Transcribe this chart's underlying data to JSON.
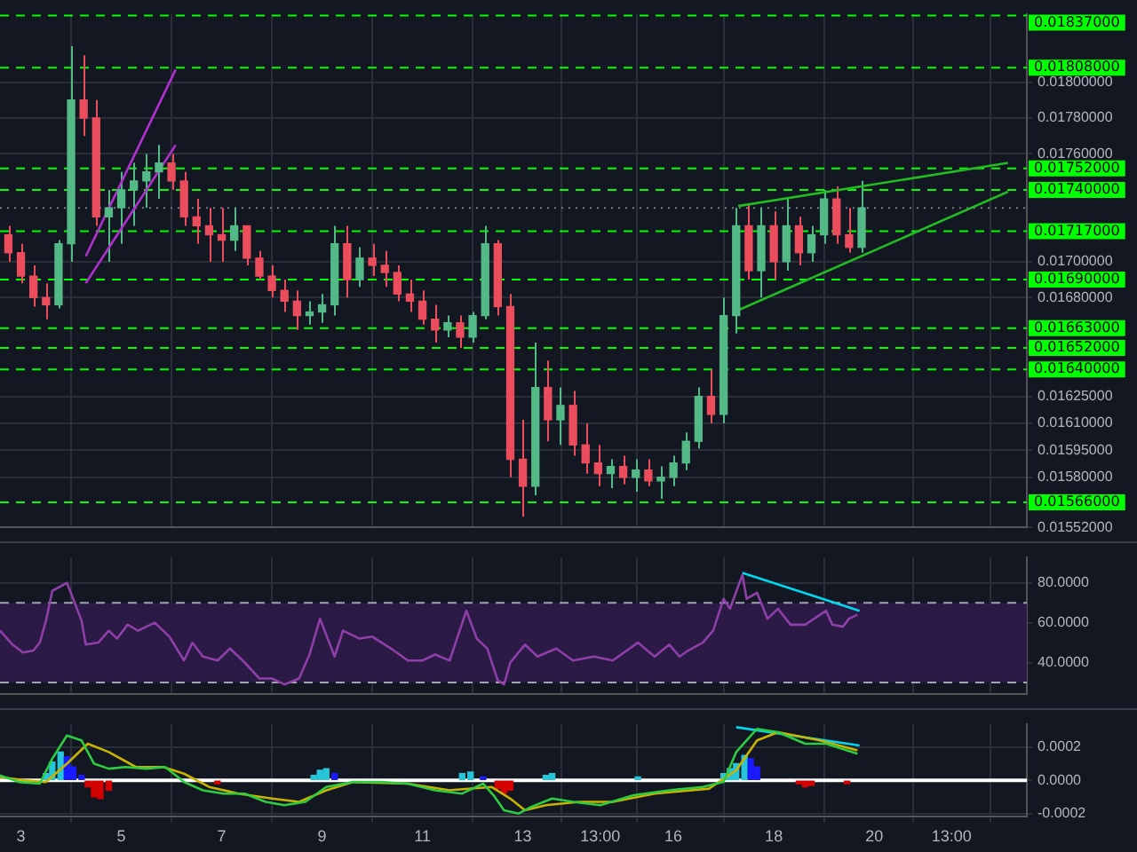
{
  "chart_data": [
    {
      "type": "candlestick",
      "xlim": [
        "--01-02T14:00",
        "--01-23T01:00"
      ],
      "ylim": [
        0.01552,
        0.01838
      ],
      "grid": true,
      "tick_labels": "y",
      "legend": false,
      "xticks": [
        {
          "value": "--01-03",
          "label": null
        },
        {
          "value": "--01-05",
          "label": null
        },
        {
          "value": "--01-07",
          "label": null
        },
        {
          "value": "--01-09",
          "label": null
        },
        {
          "value": "--01-11",
          "label": null
        },
        {
          "value": "--01-13",
          "label": null
        },
        {
          "value": "--01-14T13:00",
          "label": null
        },
        {
          "value": "--01-16",
          "label": null
        },
        {
          "value": "--01-18",
          "label": null
        },
        {
          "value": "--01-20",
          "label": null
        },
        {
          "value": "--01-21T13:00",
          "label": null
        }
      ],
      "yticks": [
        {
          "value": 0.01552,
          "label": "0.01552000"
        },
        {
          "value": 0.0158,
          "label": "0.01580000"
        },
        {
          "value": 0.01595,
          "label": "0.01595000"
        },
        {
          "value": 0.0161,
          "label": "0.01610000"
        },
        {
          "value": 0.01625,
          "label": "0.01625000"
        },
        {
          "value": 0.0168,
          "label": "0.01680000"
        },
        {
          "value": 0.017,
          "label": "0.01700000"
        },
        {
          "value": 0.0176,
          "label": "0.01760000"
        },
        {
          "value": 0.0178,
          "label": "0.01780000"
        },
        {
          "value": 0.018,
          "label": "0.01800000"
        }
      ],
      "ref_lines": [
        {
          "axis": "y",
          "value": 0.01837,
          "label": "0.01837000",
          "color": "#00ff00",
          "line_style": "dashed"
        },
        {
          "axis": "y",
          "value": 0.01808,
          "label": "0.01808000",
          "color": "#00ff00",
          "line_style": "dashed"
        },
        {
          "axis": "y",
          "value": 0.01752,
          "label": "0.01752000",
          "color": "#00ff00",
          "line_style": "dashed"
        },
        {
          "axis": "y",
          "value": 0.0174,
          "label": "0.01740000",
          "color": "#00ff00",
          "line_style": "dashed"
        },
        {
          "axis": "y",
          "value": 0.01717,
          "label": "0.01717000",
          "color": "#00ff00",
          "line_style": "dashed"
        },
        {
          "axis": "y",
          "value": 0.0169,
          "label": "0.01690000",
          "color": "#00ff00",
          "line_style": "dashed"
        },
        {
          "axis": "y",
          "value": 0.01663,
          "label": "0.01663000",
          "color": "#00ff00",
          "line_style": "dashed"
        },
        {
          "axis": "y",
          "value": 0.01652,
          "label": "0.01652000",
          "color": "#00ff00",
          "line_style": "dashed"
        },
        {
          "axis": "y",
          "value": 0.0164,
          "label": "0.01640000",
          "color": "#00ff00",
          "line_style": "dashed"
        },
        {
          "axis": "y",
          "value": 0.01566,
          "label": "0.01566000",
          "color": "#00ff00",
          "line_style": "dashed"
        },
        {
          "axis": "y",
          "value": 0.0173,
          "color": "#6f7a80",
          "line_style": "dotted"
        }
      ],
      "series": [
        {
          "x": [
            "--01-02T18:00",
            "--01-03T00:00",
            "--01-03T06:00",
            "--01-03T12:00",
            "--01-03T18:00",
            "--01-04T00:00",
            "--01-04T06:00",
            "--01-04T12:00",
            "--01-04T18:00",
            "--01-05T00:00",
            "--01-05T06:00",
            "--01-05T12:00",
            "--01-05T18:00",
            "--01-06T00:00",
            "--01-06T06:00",
            "--01-06T12:00",
            "--01-06T18:00",
            "--01-07T00:00",
            "--01-07T06:00",
            "--01-07T12:00",
            "--01-07T18:00",
            "--01-08T00:00",
            "--01-08T06:00",
            "--01-08T12:00",
            "--01-08T18:00",
            "--01-09T00:00",
            "--01-09T06:00",
            "--01-09T12:00",
            "--01-09T18:00",
            "--01-10T00:00",
            "--01-10T06:00",
            "--01-10T12:00",
            "--01-10T18:00",
            "--01-11T00:00",
            "--01-11T06:00",
            "--01-11T12:00",
            "--01-11T18:00",
            "--01-12T00:00",
            "--01-12T06:00",
            "--01-12T12:00",
            "--01-12T18:00",
            "--01-13T00:00",
            "--01-13T06:00",
            "--01-13T12:00",
            "--01-13T18:00",
            "--01-14T00:00",
            "--01-14T06:00",
            "--01-14T12:00",
            "--01-14T18:00",
            "--01-15T00:00",
            "--01-15T06:00",
            "--01-15T12:00",
            "--01-15T18:00",
            "--01-16T00:00",
            "--01-16T06:00",
            "--01-16T12:00",
            "--01-16T18:00",
            "--01-17T00:00",
            "--01-17T06:00",
            "--01-17T12:00",
            "--01-17T18:00",
            "--01-18T00:00",
            "--01-18T06:00",
            "--01-18T12:00",
            "--01-18T18:00",
            "--01-19T00:00",
            "--01-19T06:00",
            "--01-19T12:00",
            "--01-19T18:00"
          ],
          "ohlc": [
            [
              0.01715,
              0.0172,
              0.017,
              0.01705
            ],
            [
              0.01705,
              0.0171,
              0.01688,
              0.01692
            ],
            [
              0.01692,
              0.01698,
              0.01675,
              0.0168
            ],
            [
              0.0168,
              0.01688,
              0.01668,
              0.01676
            ],
            [
              0.01676,
              0.01712,
              0.01674,
              0.0171
            ],
            [
              0.0171,
              0.0182,
              0.017,
              0.0179
            ],
            [
              0.0179,
              0.01815,
              0.0177,
              0.0178
            ],
            [
              0.0178,
              0.0179,
              0.0172,
              0.01725
            ],
            [
              0.01725,
              0.0174,
              0.017,
              0.0173
            ],
            [
              0.0173,
              0.0175,
              0.0171,
              0.0174
            ],
            [
              0.0174,
              0.01755,
              0.0172,
              0.01745
            ],
            [
              0.01745,
              0.0176,
              0.0173,
              0.0175
            ],
            [
              0.0175,
              0.01765,
              0.01735,
              0.01755
            ],
            [
              0.01755,
              0.0176,
              0.0174,
              0.01745
            ],
            [
              0.01745,
              0.0175,
              0.0172,
              0.01725
            ],
            [
              0.01725,
              0.01735,
              0.0171,
              0.0172
            ],
            [
              0.0172,
              0.0173,
              0.017,
              0.01715
            ],
            [
              0.01715,
              0.0173,
              0.017,
              0.01712
            ],
            [
              0.01712,
              0.0173,
              0.01706,
              0.0172
            ],
            [
              0.0172,
              0.0172,
              0.01698,
              0.01702
            ],
            [
              0.01702,
              0.01706,
              0.0169,
              0.01692
            ],
            [
              0.01692,
              0.01698,
              0.0168,
              0.01684
            ],
            [
              0.01684,
              0.0169,
              0.01672,
              0.01678
            ],
            [
              0.01678,
              0.01684,
              0.01662,
              0.0167
            ],
            [
              0.0167,
              0.01678,
              0.01665,
              0.01672
            ],
            [
              0.01672,
              0.01682,
              0.01666,
              0.01676
            ],
            [
              0.01676,
              0.0172,
              0.0167,
              0.0171
            ],
            [
              0.0171,
              0.0172,
              0.0168,
              0.0169
            ],
            [
              0.0169,
              0.01708,
              0.01686,
              0.01702
            ],
            [
              0.01702,
              0.0171,
              0.01692,
              0.01698
            ],
            [
              0.01698,
              0.01706,
              0.01686,
              0.01694
            ],
            [
              0.01694,
              0.01698,
              0.01678,
              0.01682
            ],
            [
              0.01682,
              0.0169,
              0.01672,
              0.01678
            ],
            [
              0.01678,
              0.01684,
              0.01665,
              0.01668
            ],
            [
              0.01668,
              0.01676,
              0.01655,
              0.01662
            ],
            [
              0.01662,
              0.0167,
              0.01658,
              0.01666
            ],
            [
              0.01666,
              0.0167,
              0.01652,
              0.01658
            ],
            [
              0.01658,
              0.01672,
              0.01655,
              0.0167
            ],
            [
              0.0167,
              0.0172,
              0.01668,
              0.0171
            ],
            [
              0.0171,
              0.01712,
              0.0167,
              0.01675
            ],
            [
              0.01675,
              0.01682,
              0.0158,
              0.0159
            ],
            [
              0.0159,
              0.01612,
              0.01558,
              0.01575
            ],
            [
              0.01575,
              0.01655,
              0.0157,
              0.0163
            ],
            [
              0.0163,
              0.01645,
              0.016,
              0.01612
            ],
            [
              0.01612,
              0.0163,
              0.01598,
              0.0162
            ],
            [
              0.0162,
              0.01628,
              0.01592,
              0.01598
            ],
            [
              0.01598,
              0.0161,
              0.01582,
              0.01588
            ],
            [
              0.01588,
              0.01598,
              0.01575,
              0.01582
            ],
            [
              0.01582,
              0.0159,
              0.01574,
              0.01586
            ],
            [
              0.01586,
              0.01592,
              0.01576,
              0.0158
            ],
            [
              0.0158,
              0.0159,
              0.01572,
              0.01584
            ],
            [
              0.01584,
              0.0159,
              0.01575,
              0.01578
            ],
            [
              0.01578,
              0.01586,
              0.01568,
              0.0158
            ],
            [
              0.0158,
              0.01592,
              0.01575,
              0.01588
            ],
            [
              0.01588,
              0.01605,
              0.01584,
              0.016
            ],
            [
              0.016,
              0.0163,
              0.01596,
              0.01625
            ],
            [
              0.01625,
              0.0164,
              0.0161,
              0.01615
            ],
            [
              0.01615,
              0.0168,
              0.0161,
              0.0167
            ],
            [
              0.0167,
              0.0173,
              0.0166,
              0.0172
            ],
            [
              0.0172,
              0.01732,
              0.0169,
              0.01695
            ],
            [
              0.01695,
              0.0173,
              0.0168,
              0.0172
            ],
            [
              0.0172,
              0.01728,
              0.0169,
              0.017
            ],
            [
              0.017,
              0.01735,
              0.01695,
              0.0172
            ],
            [
              0.0172,
              0.01725,
              0.01698,
              0.01705
            ],
            [
              0.01705,
              0.0172,
              0.017,
              0.01715
            ],
            [
              0.01715,
              0.0174,
              0.0171,
              0.01735
            ],
            [
              0.01735,
              0.01742,
              0.0171,
              0.01715
            ],
            [
              0.01715,
              0.0173,
              0.01705,
              0.01708
            ],
            [
              0.01708,
              0.01745,
              0.01705,
              0.0173
            ]
          ]
        },
        {
          "type": "line",
          "color": "#b030d0",
          "x": [
            "--01-04T07:00",
            "--01-06T02:00"
          ],
          "values": [
            0.01703,
            0.01807
          ]
        },
        {
          "type": "line",
          "color": "#b030d0",
          "x": [
            "--01-04T07:00",
            "--01-06T02:00"
          ],
          "values": [
            0.01688,
            0.01765
          ]
        },
        {
          "type": "line",
          "color": "#22bb22",
          "x": [
            "--01-17T07:00",
            "--01-22T16:00"
          ],
          "values": [
            0.01731,
            0.01755
          ]
        },
        {
          "type": "line",
          "color": "#22bb22",
          "x": [
            "--01-17T07:00",
            "--01-22T16:00"
          ],
          "values": [
            0.01673,
            0.01739
          ]
        }
      ]
    },
    {
      "type": "line",
      "xlim": [
        "--01-02T14:00",
        "--01-23T01:00"
      ],
      "ylim": [
        24,
        93
      ],
      "grid": true,
      "tick_labels": "y",
      "legend": false,
      "xticks": [
        {
          "value": "--01-03",
          "label": null
        },
        {
          "value": "--01-05",
          "label": null
        },
        {
          "value": "--01-07",
          "label": null
        },
        {
          "value": "--01-09",
          "label": null
        },
        {
          "value": "--01-11",
          "label": null
        },
        {
          "value": "--01-13",
          "label": null
        },
        {
          "value": "--01-14T13:00",
          "label": null
        },
        {
          "value": "--01-16",
          "label": null
        },
        {
          "value": "--01-18",
          "label": null
        },
        {
          "value": "--01-20",
          "label": null
        },
        {
          "value": "--01-21T13:00",
          "label": null
        }
      ],
      "yticks": [
        {
          "value": 40,
          "label": "40.0000"
        },
        {
          "value": 60,
          "label": "60.0000"
        },
        {
          "value": 80,
          "label": "80.0000"
        }
      ],
      "bands": [
        {
          "axis": "y",
          "from": 30,
          "to": 70,
          "color": "#2a1a45"
        }
      ],
      "ref_lines": [
        {
          "axis": "y",
          "value": 70,
          "color": "#a0a4b0",
          "line_style": "dashed"
        },
        {
          "axis": "y",
          "value": 30,
          "color": "#a0a4b0",
          "line_style": "dashed"
        }
      ],
      "series": [
        {
          "color": "#8e3fa8",
          "x": [
            "--01-02T14:00",
            "--01-02T20:00",
            "--01-03T01:00",
            "--01-03T06:00",
            "--01-03T09:00",
            "--01-03T12:00",
            "--01-03T15:00",
            "--01-03T22:00",
            "--01-04T01:00",
            "--01-04T05:00",
            "--01-04T07:00",
            "--01-04T13:00",
            "--01-04T18:00",
            "--01-04T22:00",
            "--01-05T03:00",
            "--01-05T08:00",
            "--01-05T16:00",
            "--01-05T23:00",
            "--01-06T06:00",
            "--01-06T10:00",
            "--01-06T15:00",
            "--01-06T22:00",
            "--01-07T04:00",
            "--01-07T11:00",
            "--01-07T18:00",
            "--01-08T00:00",
            "--01-08T06:00",
            "--01-08T13:00",
            "--01-08T18:00",
            "--01-08T23:00",
            "--01-09T06:00",
            "--01-09T10:00",
            "--01-09T18:00",
            "--01-10T00:00",
            "--01-10T09:00",
            "--01-10T17:00",
            "--01-11T00:00",
            "--01-11T06:00",
            "--01-11T13:00",
            "--01-11T21:00",
            "--01-12T02:00",
            "--01-12T07:00",
            "--01-12T12:00",
            "--01-12T15:00",
            "--01-12T18:00",
            "--01-13T01:00",
            "--01-13T07:00",
            "--01-13T16:00",
            "--01-14T00:00",
            "--01-14T10:00",
            "--01-14T19:00",
            "--01-15T07:00",
            "--01-15T15:00",
            "--01-15T22:00",
            "--01-16T03:00",
            "--01-16T07:00",
            "--01-16T14:00",
            "--01-16T19:00",
            "--01-17T00:00",
            "--01-17T03:00",
            "--01-17T09:00",
            "--01-17T11:00",
            "--01-17T16:00",
            "--01-17T21:00",
            "--01-18T02:00",
            "--01-18T08:00",
            "--01-18T15:00",
            "--01-19T01:00",
            "--01-19T04:00",
            "--01-19T09:00",
            "--01-19T12:00",
            "--01-19T16:00"
          ],
          "values": [
            56,
            49,
            45,
            46,
            50,
            61,
            76,
            80,
            72,
            61,
            49,
            50,
            56,
            52,
            59,
            56,
            60,
            53,
            41,
            50,
            43,
            41,
            47,
            40,
            32,
            32,
            29,
            32,
            44,
            62,
            43,
            56,
            52,
            53,
            47,
            41,
            41,
            44,
            41,
            66,
            52,
            47,
            31,
            29,
            40,
            49,
            43,
            47,
            41,
            43,
            41,
            50,
            43,
            49,
            43,
            46,
            50,
            56,
            72,
            67,
            84,
            72,
            75,
            62,
            67,
            59,
            59,
            66,
            59,
            58,
            62,
            64
          ]
        },
        {
          "color": "#00d8f0",
          "x": [
            "--01-17T09:00",
            "--01-19T17:00"
          ],
          "values": [
            85,
            66
          ]
        }
      ]
    },
    {
      "type": "line",
      "xlim": [
        "--01-02T14:00",
        "--01-23T01:00"
      ],
      "ylim": [
        -0.00022,
        0.00034
      ],
      "grid": true,
      "legend": false,
      "xticks": [
        {
          "value": "--01-03",
          "label": "3"
        },
        {
          "value": "--01-05",
          "label": "5"
        },
        {
          "value": "--01-07",
          "label": "7"
        },
        {
          "value": "--01-09",
          "label": "9"
        },
        {
          "value": "--01-11",
          "label": "11"
        },
        {
          "value": "--01-13",
          "label": "13"
        },
        {
          "value": "--01-14T13:00",
          "label": "13:00"
        },
        {
          "value": "--01-16",
          "label": "16"
        },
        {
          "value": "--01-18",
          "label": "18"
        },
        {
          "value": "--01-20",
          "label": "20"
        },
        {
          "value": "--01-21T13:00",
          "label": "13:00"
        }
      ],
      "yticks": [
        {
          "value": -0.0002,
          "label": "-0.0002"
        },
        {
          "value": 0,
          "label": "0.0000"
        },
        {
          "value": 0.0002,
          "label": "0.0002"
        }
      ],
      "ref_lines": [
        {
          "axis": "y",
          "value": 0,
          "color": "#ffffff",
          "line_style": "solid"
        }
      ],
      "series": [
        {
          "type": "bar",
          "x": [
            "--01-03T12:00",
            "--01-03T15:00",
            "--01-03T19:00",
            "--01-03T22:00",
            "--01-04T01:00",
            "--01-04T05:00",
            "--01-04T08:00",
            "--01-04T11:00",
            "--01-04T14:00",
            "--01-04T18:00",
            "--01-06T22:00",
            "--01-08T20:00",
            "--01-08T23:00",
            "--01-09T02:00",
            "--01-09T06:00",
            "--01-11T19:00",
            "--01-11T23:00",
            "--01-12T05:00",
            "--01-12T12:00",
            "--01-12T15:00",
            "--01-12T18:00",
            "--01-13T11:00",
            "--01-13T14:00",
            "--01-15T07:00",
            "--01-17T00:00",
            "--01-17T03:00",
            "--01-17T06:00",
            "--01-17T10:00",
            "--01-17T13:00",
            "--01-17T16:00",
            "--01-18T12:00",
            "--01-18T15:00",
            "--01-18T18:00",
            "--01-19T11:00"
          ],
          "values": [
            4e-05,
            0.00011,
            0.00017,
            0.00014,
            8e-05,
            3e-05,
            -4e-05,
            -0.0001,
            -0.00011,
            -6e-05,
            -2e-05,
            3e-05,
            6e-05,
            7e-05,
            4e-05,
            4e-05,
            5e-05,
            2e-05,
            -5e-05,
            -8e-05,
            -6e-05,
            3e-05,
            4e-05,
            2e-05,
            4e-05,
            7e-05,
            0.0001,
            0.00015,
            0.00013,
            8e-05,
            -2e-05,
            -4e-05,
            -3e-05,
            -2e-05
          ],
          "colors": [
            "#26c6da",
            "#26c6da",
            "#26c6da",
            "#1a1aff",
            "#1a1aff",
            "#1a1aff",
            "#d50000",
            "#d50000",
            "#d50000",
            "#d50000",
            "#d50000",
            "#26c6da",
            "#26c6da",
            "#26c6da",
            "#1a1aff",
            "#26c6da",
            "#26c6da",
            "#1a1aff",
            "#d50000",
            "#d50000",
            "#d50000",
            "#26c6da",
            "#26c6da",
            "#26c6da",
            "#26c6da",
            "#26c6da",
            "#26c6da",
            "#26c6da",
            "#1a1aff",
            "#1a1aff",
            "#d50000",
            "#d50000",
            "#d50000",
            "#d50000"
          ]
        },
        {
          "color": "#2ecc40",
          "x": [
            "--01-02T14:00",
            "--01-02T23:00",
            "--01-03T09:00",
            "--01-03T15:00",
            "--01-03T22:00",
            "--01-04T05:00",
            "--01-04T11:00",
            "--01-04T18:00",
            "--01-05T02:00",
            "--01-05T12:00",
            "--01-05T21:00",
            "--01-06T06:00",
            "--01-06T15:00",
            "--01-07T01:00",
            "--01-07T11:00",
            "--01-07T21:00",
            "--01-08T06:00",
            "--01-08T16:00",
            "--01-09T02:00",
            "--01-09T15:00",
            "--01-10T04:00",
            "--01-10T17:00",
            "--01-11T06:00",
            "--01-11T19:00",
            "--01-12T05:00",
            "--01-12T10:00",
            "--01-12T15:00",
            "--01-12T22:00",
            "--01-13T04:00",
            "--01-13T14:00",
            "--01-14T00:00",
            "--01-14T13:00",
            "--01-15T05:00",
            "--01-15T22:00",
            "--01-16T14:00",
            "--01-17T00:00",
            "--01-17T06:00",
            "--01-17T16:00",
            "--01-18T02:00",
            "--01-18T15:00",
            "--01-19T01:00",
            "--01-19T16:00"
          ],
          "values": [
            3e-05,
            -1e-05,
            -2e-05,
            0.00013,
            0.00027,
            0.00024,
            0.0001,
            7e-05,
            8e-05,
            7e-05,
            8e-05,
            -1e-05,
            -6e-05,
            -8e-05,
            -8e-05,
            -0.00013,
            -0.00015,
            -0.00013,
            -4e-05,
            -1e-05,
            -1e-05,
            -2e-05,
            -6e-05,
            -8e-05,
            -2e-05,
            -9e-05,
            -0.00018,
            -0.0002,
            -0.00016,
            -0.00011,
            -0.00013,
            -0.00015,
            -9e-05,
            -6e-05,
            -4e-05,
            -1e-05,
            0.00017,
            0.00031,
            0.00029,
            0.00022,
            0.00022,
            0.00016
          ]
        },
        {
          "color": "#c8b400",
          "x": [
            "--01-02T14:00",
            "--01-03T02:00",
            "--01-03T12:00",
            "--01-03T22:00",
            "--01-04T08:00",
            "--01-04T18:00",
            "--01-05T07:00",
            "--01-05T20:00",
            "--01-06T06:00",
            "--01-06T18:00",
            "--01-07T08:00",
            "--01-08T00:00",
            "--01-08T13:00",
            "--01-09T02:00",
            "--01-09T15:00",
            "--01-10T17:00",
            "--01-11T13:00",
            "--01-12T09:00",
            "--01-12T18:00",
            "--01-13T01:00",
            "--01-13T11:00",
            "--01-14T03:00",
            "--01-14T19:00",
            "--01-15T15:00",
            "--01-16T17:00",
            "--01-17T06:00",
            "--01-17T16:00",
            "--01-18T02:00",
            "--01-18T22:00",
            "--01-19T16:00"
          ],
          "values": [
            2e-05,
            0,
            -1e-05,
            0.0001,
            0.00022,
            0.00017,
            8e-05,
            8e-05,
            4e-05,
            -4e-05,
            -8e-05,
            -0.00011,
            -0.00013,
            -6e-05,
            -1e-05,
            -2e-05,
            -6e-05,
            -4e-05,
            -0.00011,
            -0.00018,
            -0.00015,
            -0.00013,
            -0.00013,
            -8e-05,
            -5e-05,
            6e-05,
            0.00024,
            0.00029,
            0.00024,
            0.00018
          ]
        },
        {
          "color": "#00d8f0",
          "x": [
            "--01-17T06:00",
            "--01-19T17:00"
          ],
          "values": [
            0.00032,
            0.00021
          ]
        }
      ]
    }
  ]
}
